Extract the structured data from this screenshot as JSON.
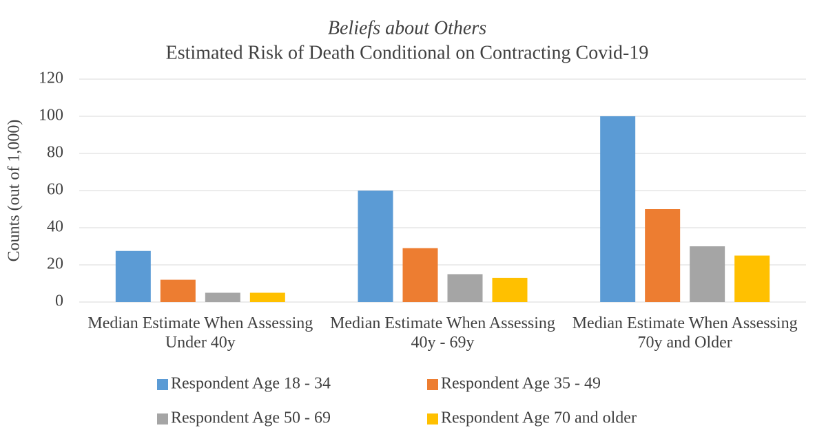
{
  "chart_data": {
    "type": "bar",
    "title": "Beliefs about Others",
    "subtitle": "Estimated Risk of Death Conditional on Contracting Covid-19",
    "y_label": "Counts (out of 1,000)",
    "categories": [
      "Median Estimate When Assessing Under 40y",
      "Median Estimate When Assessing 40y - 69y",
      "Median Estimate When Assessing 70y and Older"
    ],
    "series": [
      {
        "name": "Respondent Age 18 - 34",
        "color": "#5b9bd5",
        "values": [
          27.5,
          60,
          100
        ]
      },
      {
        "name": "Respondent Age 35 - 49",
        "color": "#ed7d31",
        "values": [
          12,
          29,
          50
        ]
      },
      {
        "name": "Respondent Age 50 - 69",
        "color": "#a5a5a5",
        "values": [
          5,
          15,
          30
        ]
      },
      {
        "name": "Respondent Age 70 and older",
        "color": "#ffc000",
        "values": [
          5,
          13,
          25
        ]
      }
    ],
    "ylim": [
      0,
      120
    ],
    "yticks": [
      0,
      20,
      40,
      60,
      80,
      100,
      120
    ],
    "grid": true,
    "legend": "bottom"
  }
}
